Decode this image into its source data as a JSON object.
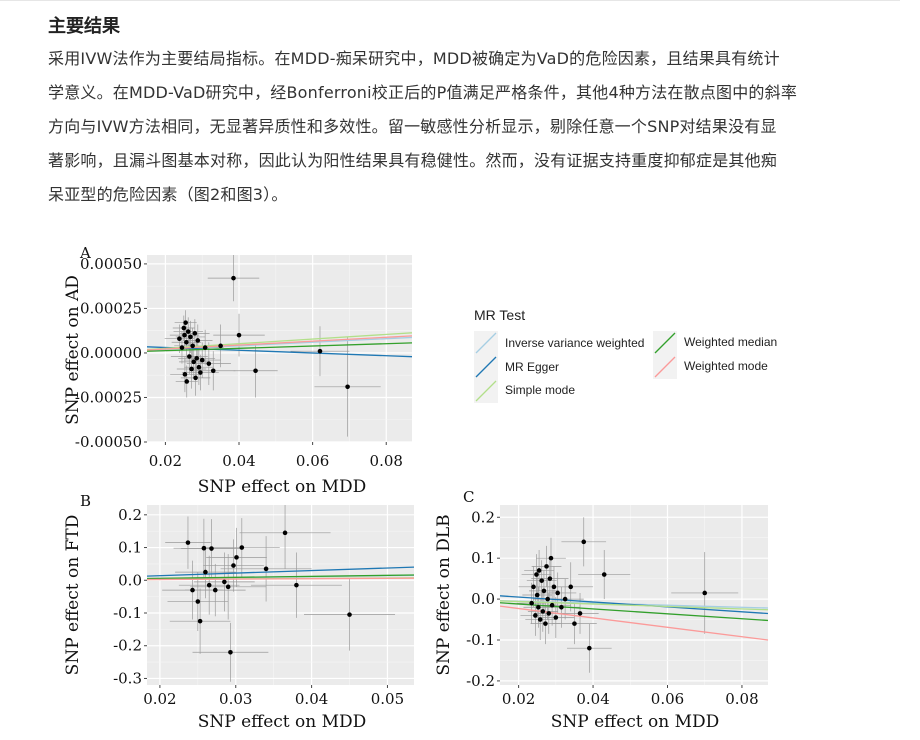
{
  "article": {
    "heading": "主要结果",
    "paragraph_lines": [
      "采用IVW法作为主要结局指标。在MDD-痴呆研究中，MDD被确定为VaD的危险因素，且结果具有统计",
      "学意义。在MDD-VaD研究中，经Bonferroni校正后的P值满足严格条件，其他4种方法在散点图中的斜率",
      "方向与IVW方法相同，无显著异质性和多效性。留一敏感性分析显示，剔除任意一个SNP对结果没有显",
      "著影响，且漏斗图基本对称，因此认为阳性结果具有稳健性。然而，没有证据支持重度抑郁症是其他痴",
      "呆亚型的危险因素（图2和图3）。"
    ]
  },
  "legend": {
    "title": "MR Test",
    "items": [
      {
        "label": "Inverse variance weighted",
        "color": "#a6cee3"
      },
      {
        "label": "MR Egger",
        "color": "#1f78b4"
      },
      {
        "label": "Simple mode",
        "color": "#b2df8a"
      },
      {
        "label": "Weighted median",
        "color": "#33a02c"
      },
      {
        "label": "Weighted mode",
        "color": "#fb9a99"
      }
    ]
  },
  "chart_data": [
    {
      "type": "scatter",
      "panel_label": "A",
      "xlabel": "SNP effect on MDD",
      "ylabel": "SNP effect on AD",
      "xlim": [
        0.015,
        0.087
      ],
      "ylim": [
        -0.0005,
        0.00055
      ],
      "xticks": [
        0.02,
        0.04,
        0.06,
        0.08
      ],
      "xtick_labels": [
        "0.02",
        "0.04",
        "0.06",
        "0.08"
      ],
      "yticks": [
        -0.0005,
        -0.00025,
        0.0,
        0.00025,
        0.0005
      ],
      "ytick_labels": [
        "-0.00050",
        "-0.00025",
        "0.00000",
        "0.00025",
        "0.00050"
      ],
      "points": [
        {
          "x": 0.0238,
          "y": 8e-05,
          "xe": 0.004,
          "ye": 8e-05
        },
        {
          "x": 0.0245,
          "y": 3e-05,
          "xe": 0.004,
          "ye": 9e-05
        },
        {
          "x": 0.025,
          "y": 0.00014,
          "xe": 0.003,
          "ye": 7e-05
        },
        {
          "x": 0.0252,
          "y": 0.0001,
          "xe": 0.004,
          "ye": 8e-05
        },
        {
          "x": 0.0253,
          "y": -0.00012,
          "xe": 0.004,
          "ye": 0.0001
        },
        {
          "x": 0.0255,
          "y": 0.00017,
          "xe": 0.003,
          "ye": 7e-05
        },
        {
          "x": 0.0257,
          "y": 6e-05,
          "xe": 0.004,
          "ye": 9e-05
        },
        {
          "x": 0.0258,
          "y": -0.00016,
          "xe": 0.003,
          "ye": 9e-05
        },
        {
          "x": 0.0262,
          "y": 0.00012,
          "xe": 0.004,
          "ye": 8e-05
        },
        {
          "x": 0.0265,
          "y": -2e-05,
          "xe": 0.005,
          "ye": 0.0001
        },
        {
          "x": 0.0268,
          "y": 9e-05,
          "xe": 0.004,
          "ye": 9e-05
        },
        {
          "x": 0.0271,
          "y": -9e-05,
          "xe": 0.004,
          "ye": 0.00011
        },
        {
          "x": 0.0274,
          "y": 4e-05,
          "xe": 0.005,
          "ye": 0.0001
        },
        {
          "x": 0.0277,
          "y": -5e-05,
          "xe": 0.004,
          "ye": 9e-05
        },
        {
          "x": 0.028,
          "y": 0.00011,
          "xe": 0.004,
          "ye": 8e-05
        },
        {
          "x": 0.0282,
          "y": -0.00014,
          "xe": 0.004,
          "ye": 0.0001
        },
        {
          "x": 0.0285,
          "y": -3e-05,
          "xe": 0.005,
          "ye": 0.0001
        },
        {
          "x": 0.0288,
          "y": 7e-05,
          "xe": 0.004,
          "ye": 9e-05
        },
        {
          "x": 0.0291,
          "y": -8e-05,
          "xe": 0.004,
          "ye": 0.0001
        },
        {
          "x": 0.0295,
          "y": -0.00011,
          "xe": 0.005,
          "ye": 0.0001
        },
        {
          "x": 0.03,
          "y": -4e-05,
          "xe": 0.005,
          "ye": 0.0001
        },
        {
          "x": 0.0308,
          "y": 3e-05,
          "xe": 0.005,
          "ye": 0.0001
        },
        {
          "x": 0.0318,
          "y": -6e-05,
          "xe": 0.006,
          "ye": 0.00012
        },
        {
          "x": 0.033,
          "y": -0.0001,
          "xe": 0.006,
          "ye": 0.00011
        },
        {
          "x": 0.035,
          "y": 4e-05,
          "xe": 0.006,
          "ye": 0.00012
        },
        {
          "x": 0.0385,
          "y": 0.00042,
          "xe": 0.007,
          "ye": 0.00013
        },
        {
          "x": 0.04,
          "y": 0.0001,
          "xe": 0.007,
          "ye": 0.00012
        },
        {
          "x": 0.0445,
          "y": -0.0001,
          "xe": 0.006,
          "ye": 0.00015
        },
        {
          "x": 0.062,
          "y": 1e-05,
          "xe": 0.008,
          "ye": 0.00014
        },
        {
          "x": 0.0695,
          "y": -0.00019,
          "xe": 0.009,
          "ye": 0.00028
        }
      ],
      "lines": [
        {
          "method": "Inverse variance weighted",
          "slope": 0.001
        },
        {
          "method": "MR Egger",
          "slope": -0.00077,
          "intercept": 4.6e-05
        },
        {
          "method": "Simple mode",
          "slope": 0.0013
        },
        {
          "method": "Weighted median",
          "slope": 0.00065
        },
        {
          "method": "Weighted mode",
          "slope": 0.0011
        }
      ]
    },
    {
      "type": "scatter",
      "panel_label": "B",
      "xlabel": "SNP effect on MDD",
      "ylabel": "SNP effect on FTD",
      "xlim": [
        0.0183,
        0.0535
      ],
      "ylim": [
        -0.32,
        0.23
      ],
      "xticks": [
        0.02,
        0.03,
        0.04,
        0.05
      ],
      "xtick_labels": [
        "0.02",
        "0.03",
        "0.04",
        "0.05"
      ],
      "yticks": [
        -0.3,
        -0.2,
        -0.1,
        0.0,
        0.1,
        0.2
      ],
      "ytick_labels": [
        "-0.3",
        "-0.2",
        "-0.1",
        "0.0",
        "0.1",
        "0.2"
      ],
      "points": [
        {
          "x": 0.0237,
          "y": 0.115,
          "xe": 0.003,
          "ye": 0.08
        },
        {
          "x": 0.0243,
          "y": -0.03,
          "xe": 0.004,
          "ye": 0.09
        },
        {
          "x": 0.025,
          "y": -0.065,
          "xe": 0.004,
          "ye": 0.09
        },
        {
          "x": 0.0253,
          "y": -0.125,
          "xe": 0.004,
          "ye": 0.1
        },
        {
          "x": 0.0258,
          "y": 0.098,
          "xe": 0.004,
          "ye": 0.09
        },
        {
          "x": 0.026,
          "y": 0.025,
          "xe": 0.004,
          "ye": 0.08
        },
        {
          "x": 0.0265,
          "y": -0.015,
          "xe": 0.004,
          "ye": 0.09
        },
        {
          "x": 0.0268,
          "y": 0.097,
          "xe": 0.004,
          "ye": 0.09
        },
        {
          "x": 0.0273,
          "y": -0.03,
          "xe": 0.004,
          "ye": 0.08
        },
        {
          "x": 0.0285,
          "y": -0.005,
          "xe": 0.004,
          "ye": 0.09
        },
        {
          "x": 0.029,
          "y": -0.02,
          "xe": 0.005,
          "ye": 0.1
        },
        {
          "x": 0.0293,
          "y": -0.22,
          "xe": 0.005,
          "ye": 0.09
        },
        {
          "x": 0.0297,
          "y": 0.045,
          "xe": 0.004,
          "ye": 0.08
        },
        {
          "x": 0.0301,
          "y": 0.07,
          "xe": 0.004,
          "ye": 0.09
        },
        {
          "x": 0.0308,
          "y": 0.1,
          "xe": 0.005,
          "ye": 0.09
        },
        {
          "x": 0.034,
          "y": 0.035,
          "xe": 0.006,
          "ye": 0.1
        },
        {
          "x": 0.0365,
          "y": 0.145,
          "xe": 0.006,
          "ye": 0.11
        },
        {
          "x": 0.038,
          "y": -0.015,
          "xe": 0.006,
          "ye": 0.1
        },
        {
          "x": 0.045,
          "y": -0.105,
          "xe": 0.006,
          "ye": 0.11
        }
      ],
      "lines": [
        {
          "method": "Inverse variance weighted",
          "slope": 0.28
        },
        {
          "method": "MR Egger",
          "slope": 0.78,
          "intercept": -0.0015
        },
        {
          "method": "Simple mode",
          "slope": 0.14
        },
        {
          "method": "Weighted median",
          "slope": 0.3
        },
        {
          "method": "Weighted mode",
          "slope": 0.12
        }
      ]
    },
    {
      "type": "scatter",
      "panel_label": "C",
      "xlabel": "SNP effect on MDD",
      "ylabel": "SNP effect on DLB",
      "xlim": [
        0.015,
        0.087
      ],
      "ylim": [
        -0.21,
        0.23
      ],
      "xticks": [
        0.02,
        0.04,
        0.06,
        0.08
      ],
      "xtick_labels": [
        "0.02",
        "0.04",
        "0.06",
        "0.08"
      ],
      "yticks": [
        -0.2,
        -0.1,
        0.0,
        0.1,
        0.2
      ],
      "ytick_labels": [
        "-0.2",
        "-0.1",
        "0.0",
        "0.1",
        "0.2"
      ],
      "points": [
        {
          "x": 0.0235,
          "y": -0.01,
          "xe": 0.004,
          "ye": 0.05
        },
        {
          "x": 0.024,
          "y": 0.03,
          "xe": 0.004,
          "ye": 0.05
        },
        {
          "x": 0.0245,
          "y": -0.04,
          "xe": 0.004,
          "ye": 0.05
        },
        {
          "x": 0.0248,
          "y": 0.06,
          "xe": 0.004,
          "ye": 0.05
        },
        {
          "x": 0.025,
          "y": 0.01,
          "xe": 0.004,
          "ye": 0.05
        },
        {
          "x": 0.0253,
          "y": -0.02,
          "xe": 0.004,
          "ye": 0.05
        },
        {
          "x": 0.0255,
          "y": 0.07,
          "xe": 0.004,
          "ye": 0.05
        },
        {
          "x": 0.0258,
          "y": -0.05,
          "xe": 0.004,
          "ye": 0.05
        },
        {
          "x": 0.0262,
          "y": 0.045,
          "xe": 0.004,
          "ye": 0.05
        },
        {
          "x": 0.0265,
          "y": -0.03,
          "xe": 0.004,
          "ye": 0.05
        },
        {
          "x": 0.0268,
          "y": 0.02,
          "xe": 0.004,
          "ye": 0.05
        },
        {
          "x": 0.0272,
          "y": -0.06,
          "xe": 0.004,
          "ye": 0.05
        },
        {
          "x": 0.0275,
          "y": 0.08,
          "xe": 0.004,
          "ye": 0.05
        },
        {
          "x": 0.0278,
          "y": 0.0,
          "xe": 0.004,
          "ye": 0.05
        },
        {
          "x": 0.0281,
          "y": -0.035,
          "xe": 0.004,
          "ye": 0.05
        },
        {
          "x": 0.0284,
          "y": 0.05,
          "xe": 0.005,
          "ye": 0.05
        },
        {
          "x": 0.0287,
          "y": 0.1,
          "xe": 0.004,
          "ye": 0.05
        },
        {
          "x": 0.029,
          "y": -0.015,
          "xe": 0.005,
          "ye": 0.05
        },
        {
          "x": 0.0295,
          "y": 0.03,
          "xe": 0.005,
          "ye": 0.05
        },
        {
          "x": 0.03,
          "y": -0.045,
          "xe": 0.005,
          "ye": 0.05
        },
        {
          "x": 0.0305,
          "y": 0.015,
          "xe": 0.005,
          "ye": 0.05
        },
        {
          "x": 0.0315,
          "y": -0.02,
          "xe": 0.005,
          "ye": 0.05
        },
        {
          "x": 0.0325,
          "y": 0.0,
          "xe": 0.005,
          "ye": 0.05
        },
        {
          "x": 0.034,
          "y": 0.03,
          "xe": 0.006,
          "ye": 0.06
        },
        {
          "x": 0.035,
          "y": -0.06,
          "xe": 0.006,
          "ye": 0.05
        },
        {
          "x": 0.0365,
          "y": -0.035,
          "xe": 0.005,
          "ye": 0.05
        },
        {
          "x": 0.0375,
          "y": 0.14,
          "xe": 0.006,
          "ye": 0.06
        },
        {
          "x": 0.039,
          "y": -0.12,
          "xe": 0.006,
          "ye": 0.06
        },
        {
          "x": 0.043,
          "y": 0.06,
          "xe": 0.007,
          "ye": 0.06
        },
        {
          "x": 0.07,
          "y": 0.015,
          "xe": 0.009,
          "ye": 0.1
        }
      ],
      "lines": [
        {
          "method": "Inverse variance weighted",
          "slope": -0.25
        },
        {
          "method": "MR Egger",
          "slope": -0.6,
          "intercept": 0.017
        },
        {
          "method": "Simple mode",
          "slope": -0.3
        },
        {
          "method": "Weighted median",
          "slope": -0.6
        },
        {
          "method": "Weighted mode",
          "slope": -1.15
        }
      ]
    }
  ]
}
